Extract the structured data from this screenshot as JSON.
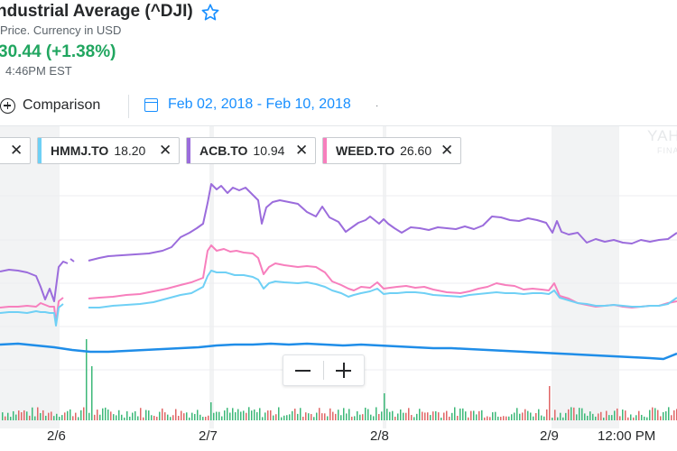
{
  "header": {
    "title": "ndustrial Average (^DJI)",
    "subtitle": "Price. Currency in USD",
    "change": "30.44 (+1.38%)",
    "time": "4:46PM EST",
    "star_icon": "star-outline-icon"
  },
  "toolbar": {
    "comparison_label": "Comparison",
    "date_range": "Feb 02, 2018 - Feb 10, 2018",
    "dot": "·"
  },
  "chips": [
    {
      "symbol": "HMMJ.TO",
      "value": "18.20",
      "color": "#6fd0f5"
    },
    {
      "symbol": "ACB.TO",
      "value": "10.94",
      "color": "#9b6cdc"
    },
    {
      "symbol": "WEED.TO",
      "value": "26.60",
      "color": "#f77fbd"
    }
  ],
  "watermark": {
    "line1": "YAH",
    "line2": "FINA"
  },
  "x_axis": {
    "labels": [
      "2/6",
      "2/7",
      "2/8",
      "2/9",
      "12:00 PM"
    ]
  },
  "colors": {
    "dji": "#1f8de8",
    "up_volume": "#3cb878",
    "down_volume": "#e06666",
    "shade": "#f2f3f4"
  },
  "zoom": {
    "minus_icon": "zoom-out-icon",
    "plus_icon": "zoom-in-icon"
  }
}
